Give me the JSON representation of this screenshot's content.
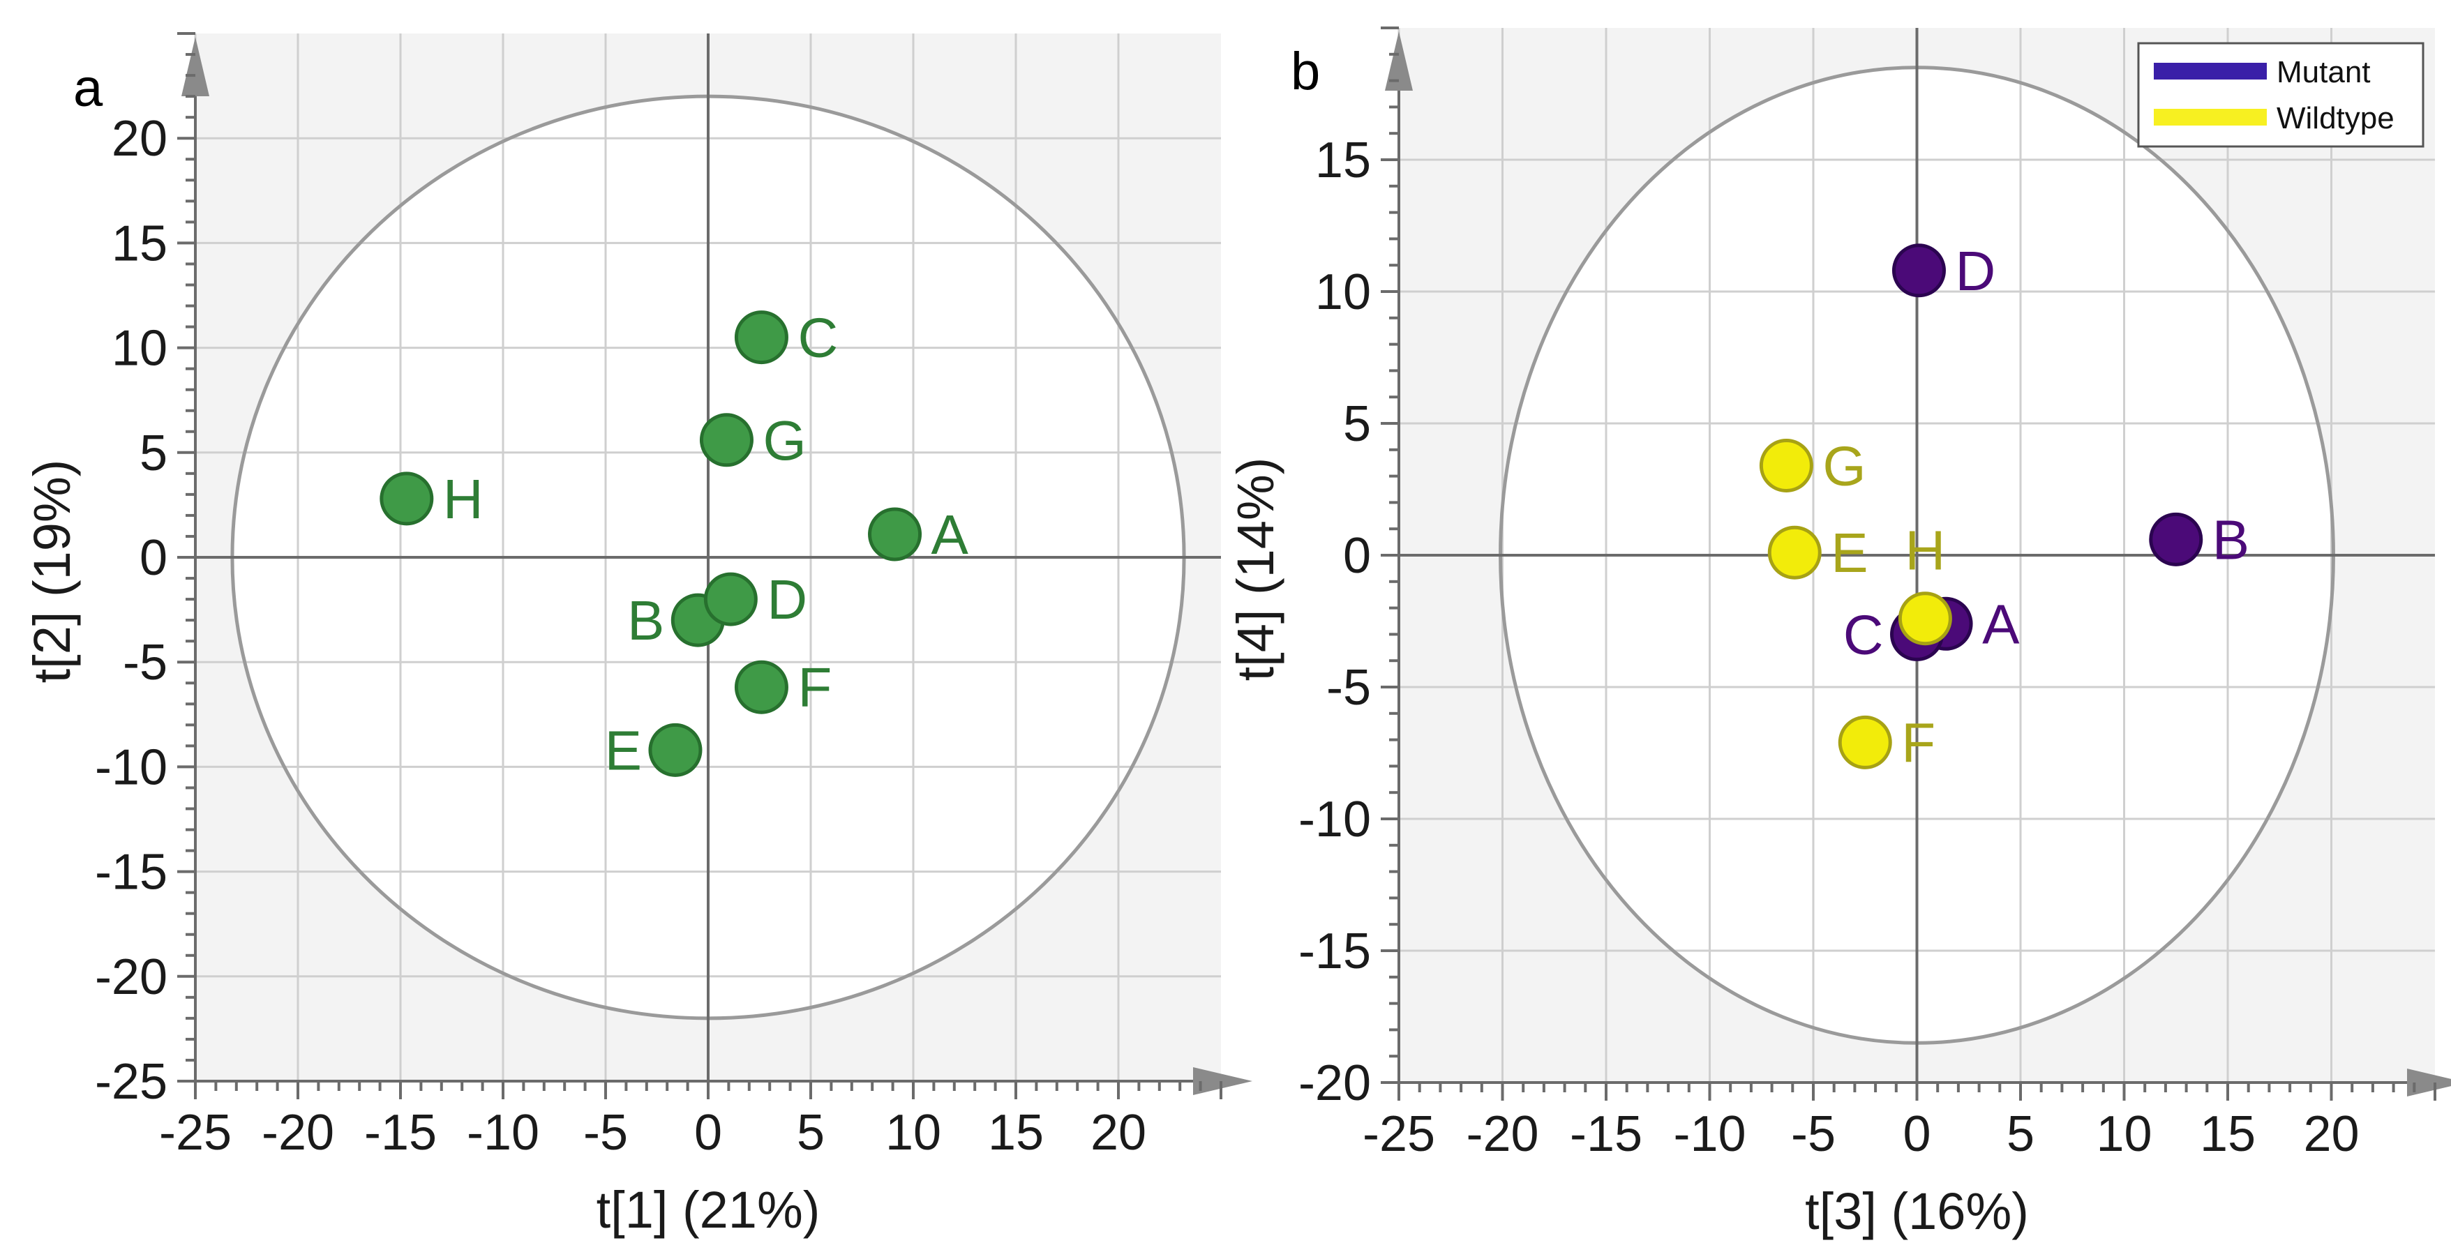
{
  "colors": {
    "groupA": "#3f9a47",
    "groupA_stroke": "#27702e",
    "groupA_text": "#2e7d35",
    "mutant": "#4b0a78",
    "mutant_stroke": "#2b0450",
    "wildtype": "#f2ec0a",
    "wildtype_stroke": "#a7a214",
    "wildtype_text": "#a8a51b",
    "legend_mutant": "#3a1fa8",
    "legend_wildtype": "#f7f021",
    "plot_bg": "#f3f3f3",
    "grid": "#cfcfcf",
    "ellipse": "#9a9a9a",
    "axis": "#6b6b6b"
  },
  "chart_data": [
    {
      "type": "scatter",
      "panel": "a",
      "xlabel": "t[1] (21%)",
      "ylabel": "t[2] (19%)",
      "xlim": [
        -25,
        25
      ],
      "ylim": [
        -25,
        25
      ],
      "xticks": [
        -25,
        -20,
        -15,
        -10,
        -5,
        0,
        5,
        10,
        15,
        20
      ],
      "xtick_labels": [
        "-25",
        "-20",
        "-15",
        "-10",
        "-5",
        "0",
        "5",
        "10",
        "15",
        "20"
      ],
      "yticks": [
        -25,
        -20,
        -15,
        -10,
        -5,
        0,
        5,
        10,
        15,
        20
      ],
      "ytick_labels": [
        "-25",
        "-20",
        "-15",
        "-10",
        "-5",
        "0",
        "5",
        "10",
        "15",
        "20"
      ],
      "ellipse": {
        "rx": 23.2,
        "ry": 22
      },
      "points": [
        {
          "label": "A",
          "x": 9.1,
          "y": 1.1,
          "group": "groupA",
          "label_side": "right"
        },
        {
          "label": "B",
          "x": -0.5,
          "y": -3.0,
          "group": "groupA",
          "label_side": "left"
        },
        {
          "label": "C",
          "x": 2.6,
          "y": 10.5,
          "group": "groupA",
          "label_side": "right"
        },
        {
          "label": "D",
          "x": 1.1,
          "y": -2.0,
          "group": "groupA",
          "label_side": "right"
        },
        {
          "label": "E",
          "x": -1.6,
          "y": -9.2,
          "group": "groupA",
          "label_side": "left"
        },
        {
          "label": "F",
          "x": 2.6,
          "y": -6.2,
          "group": "groupA",
          "label_side": "right"
        },
        {
          "label": "G",
          "x": 0.9,
          "y": 5.6,
          "group": "groupA",
          "label_side": "right"
        },
        {
          "label": "H",
          "x": -14.7,
          "y": 2.8,
          "group": "groupA",
          "label_side": "right"
        }
      ]
    },
    {
      "type": "scatter",
      "panel": "b",
      "xlabel": "t[3] (16%)",
      "ylabel": "t[4] (14%)",
      "xlim": [
        -25,
        25
      ],
      "ylim": [
        -20,
        20
      ],
      "xticks": [
        -25,
        -20,
        -15,
        -10,
        -5,
        0,
        5,
        10,
        15,
        20
      ],
      "xtick_labels": [
        "-25",
        "-20",
        "-15",
        "-10",
        "-5",
        "0",
        "5",
        "10",
        "15",
        "20"
      ],
      "yticks": [
        -20,
        -15,
        -10,
        -5,
        0,
        5,
        10,
        15
      ],
      "ytick_labels": [
        "-20",
        "-15",
        "-10",
        "-5",
        "0",
        "5",
        "10",
        "15"
      ],
      "ellipse": {
        "rx": 20.1,
        "ry": 18.5
      },
      "legend": {
        "position": "top-right",
        "entries": [
          {
            "name": "Mutant",
            "color": "#3a1fa8"
          },
          {
            "name": "Wildtype",
            "color": "#f7f021"
          }
        ]
      },
      "points": [
        {
          "label": "A",
          "x": 1.4,
          "y": -2.6,
          "group": "mutant",
          "label_side": "right"
        },
        {
          "label": "B",
          "x": 12.5,
          "y": 0.6,
          "group": "mutant",
          "label_side": "right"
        },
        {
          "label": "C",
          "x": 0.0,
          "y": -3.0,
          "group": "mutant",
          "label_side": "left"
        },
        {
          "label": "D",
          "x": 0.1,
          "y": 10.8,
          "group": "mutant",
          "label_side": "right"
        },
        {
          "label": "E",
          "x": -5.9,
          "y": 0.1,
          "group": "wildtype",
          "label_side": "right"
        },
        {
          "label": "F",
          "x": -2.5,
          "y": -7.1,
          "group": "wildtype",
          "label_side": "right"
        },
        {
          "label": "G",
          "x": -6.3,
          "y": 3.4,
          "group": "wildtype",
          "label_side": "right"
        },
        {
          "label": "H",
          "x": 0.4,
          "y": -2.4,
          "group": "wildtype",
          "label_side": "above"
        }
      ]
    }
  ]
}
